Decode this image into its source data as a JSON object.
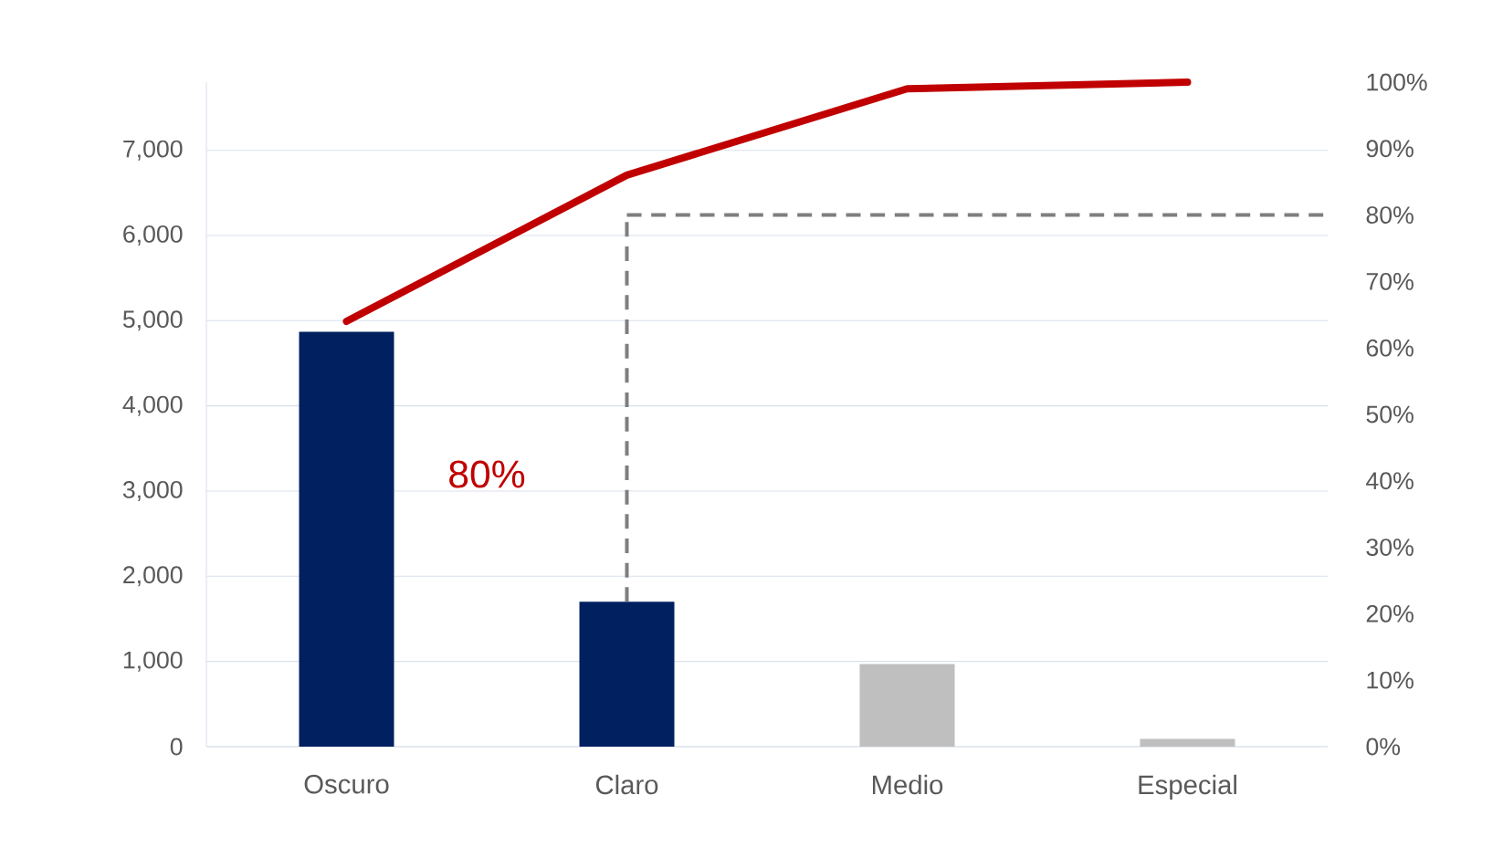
{
  "chart_data": {
    "type": "bar",
    "categories": [
      "Oscuro",
      "Claro",
      "Medio",
      "Especial"
    ],
    "series": [
      {
        "colors": [
          "#002060",
          "#002060",
          "#bfbfbf",
          "#bfbfbf"
        ],
        "values": [
          4870,
          1700,
          970,
          90
        ]
      },
      {
        "type": "line",
        "axis": "y2",
        "color": "#c00000",
        "values": [
          64,
          86,
          99,
          100
        ]
      }
    ],
    "ylim": [
      0,
      7800
    ],
    "yticks": [
      0,
      {
        "value": 1000,
        "label": "1,000"
      },
      {
        "value": 2000,
        "label": "2,000"
      },
      {
        "value": 3000,
        "label": "3,000"
      },
      {
        "value": 4000,
        "label": "4,000"
      },
      {
        "value": 5000,
        "label": "5,000"
      },
      {
        "value": 6000,
        "label": "6,000"
      },
      {
        "value": 7000,
        "label": "7,000"
      }
    ],
    "y2lim": [
      0,
      100
    ],
    "y2ticks": [
      {
        "value": 0,
        "label": "0%"
      },
      {
        "value": 10,
        "label": "10%"
      },
      {
        "value": 20,
        "label": "20%"
      },
      {
        "value": 30,
        "label": "30%"
      },
      {
        "value": 40,
        "label": "40%"
      },
      {
        "value": 50,
        "label": "50%"
      },
      {
        "value": 60,
        "label": "60%"
      },
      {
        "value": 70,
        "label": "70%"
      },
      {
        "value": 80,
        "label": "80%"
      },
      {
        "value": 90,
        "label": "90%"
      },
      {
        "value": 100,
        "label": "100%"
      }
    ],
    "grid": "y",
    "marker": "none",
    "annotations": [
      "80%"
    ],
    "ref_lines": [
      {
        "axis": "y2",
        "value": 80,
        "color": "#7f7f7f",
        "line_style": "dashed"
      },
      {
        "axis": "x",
        "value": "Claro",
        "color": "#7f7f7f",
        "line_style": "dashed"
      }
    ]
  }
}
